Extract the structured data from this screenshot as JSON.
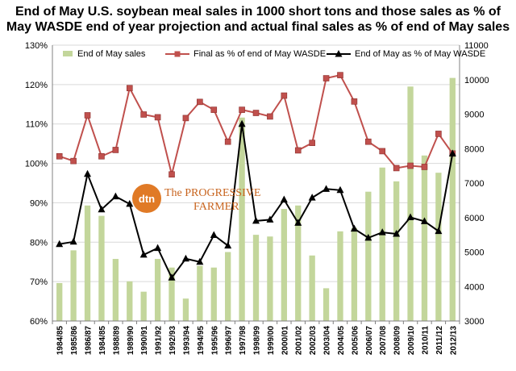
{
  "title_line1": "End of May U.S. soybean meal sales in 1000 short tons and those sales as % of",
  "title_line2": "May WASDE  end of year projection and actual final sales as % of end of May sales",
  "logo": {
    "mark": "dtn",
    "line1": "The PROGRESSIVE",
    "line2": "FARMER"
  },
  "colors": {
    "bars": "#c3d69b",
    "final_line": "#c0504d",
    "end_line": "#000000",
    "grid": "#d9d9d9",
    "logo": "#e07a26"
  },
  "chart_data": {
    "type": "bar+line",
    "categories": [
      "1984/85",
      "1985/86",
      "1986/87",
      "1984/85",
      "1988/89",
      "1989/90",
      "1990/91",
      "1991/92",
      "1992/93",
      "1993/94",
      "1994/95",
      "1995/96",
      "1996/97",
      "1997/98",
      "1998/99",
      "1999/00",
      "2000/01",
      "2001/02",
      "2002/03",
      "2003/04",
      "2004/05",
      "2005/06",
      "2006/07",
      "2007/08",
      "2008/09",
      "2009/10",
      "2010/11",
      "2011/12",
      "2012/13"
    ],
    "left_axis": {
      "min": 60,
      "max": 130,
      "step": 10,
      "suffix": "%"
    },
    "right_axis": {
      "min": 3000,
      "max": 11000,
      "step": 1000
    },
    "legend_position": "top",
    "series": [
      {
        "name": "End of May sales",
        "type": "bar",
        "axis": "right",
        "values": [
          4100,
          5050,
          6350,
          6050,
          4800,
          4150,
          3850,
          4800,
          4550,
          3650,
          4600,
          4550,
          5000,
          8900,
          5500,
          5450,
          6250,
          6350,
          4900,
          3950,
          5600,
          5700,
          6750,
          7450,
          7050,
          9800,
          7800,
          7300,
          10050
        ]
      },
      {
        "name": "Final as % of end of May WASDE",
        "type": "line",
        "axis": "left",
        "values": [
          101.8,
          100.6,
          112.2,
          101.8,
          103.4,
          119.1,
          112.4,
          111.7,
          97.2,
          111.5,
          115.6,
          113.6,
          105.5,
          113.6,
          112.8,
          111.9,
          117.2,
          103.3,
          105.2,
          121.6,
          122.4,
          115.7,
          105.5,
          103.1,
          98.8,
          99.4,
          99.1,
          107.5,
          102.5
        ]
      },
      {
        "name": "End of May as % of May WASDE",
        "type": "line",
        "axis": "left",
        "values": [
          79.5,
          80.1,
          97.3,
          88.3,
          91.6,
          89.7,
          76.8,
          78.5,
          71.0,
          75.8,
          75.0,
          81.8,
          79.1,
          110.0,
          85.4,
          85.7,
          90.8,
          84.9,
          91.3,
          93.5,
          93.2,
          83.4,
          81.1,
          82.5,
          82.1,
          86.3,
          85.3,
          82.8,
          102.5
        ]
      }
    ]
  }
}
